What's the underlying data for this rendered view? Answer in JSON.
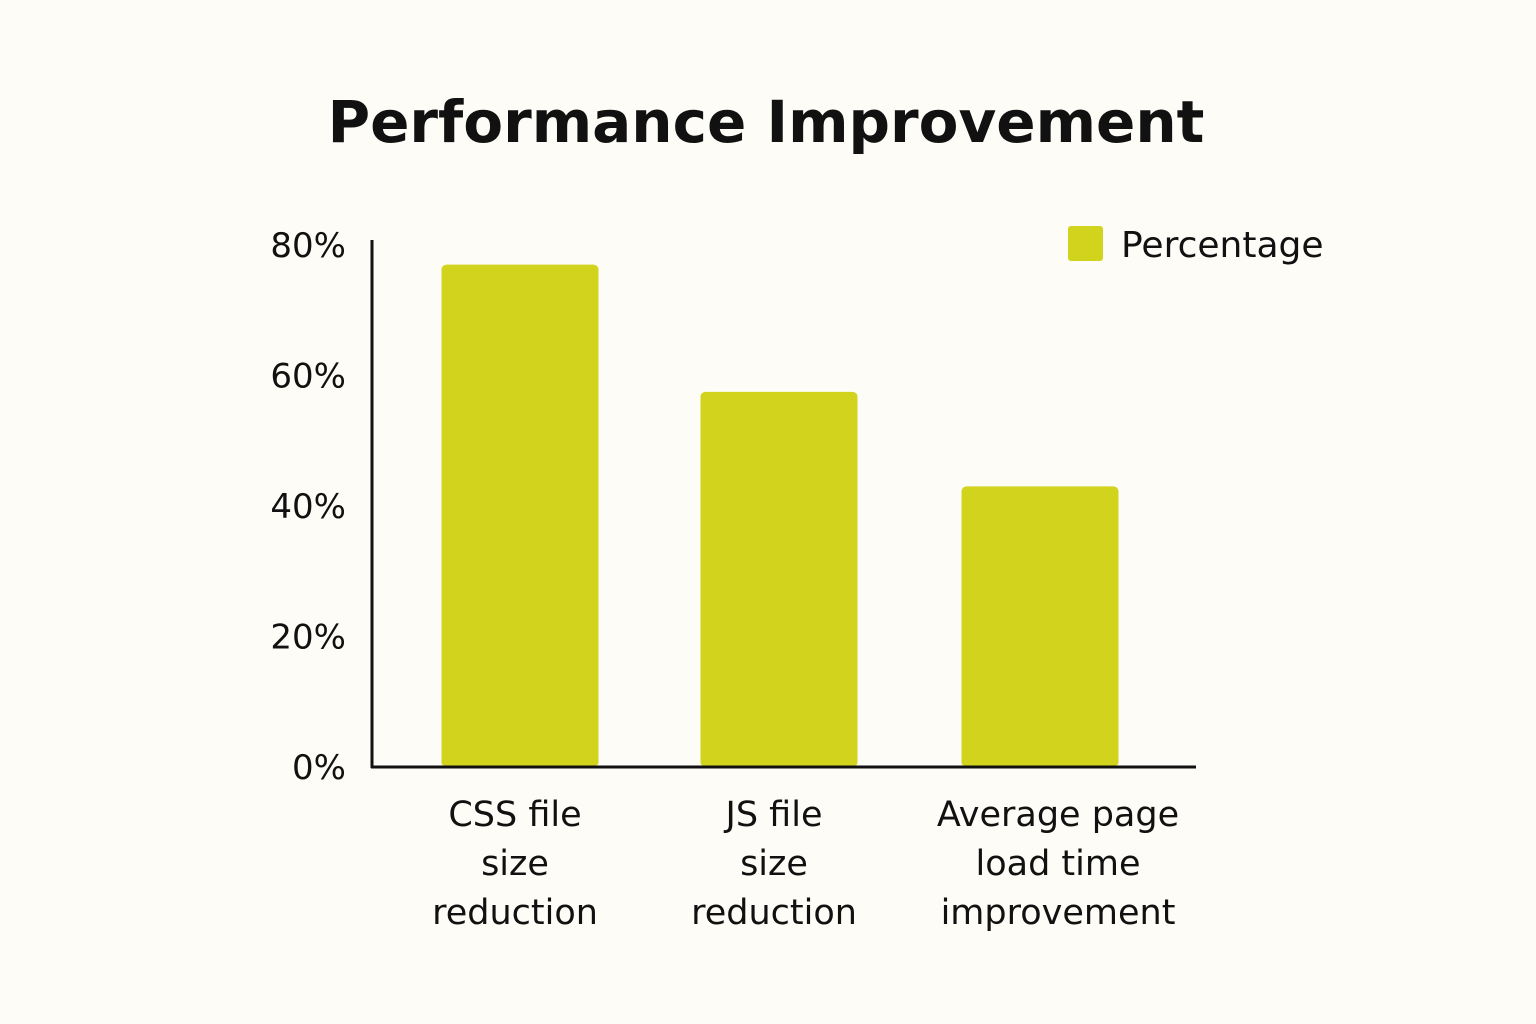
{
  "colors": {
    "background": "#fdfcf6",
    "bar": "#d2d31d",
    "axis": "#111111",
    "text": "#111111"
  },
  "chart_data": {
    "type": "bar",
    "title": "Performance Improvement",
    "xlabel": "",
    "ylabel": "",
    "categories": [
      [
        "CSS file",
        "size",
        "reduction"
      ],
      [
        "JS file",
        "size",
        "reduction"
      ],
      [
        "Average page",
        "load time",
        "improvement"
      ]
    ],
    "series": [
      {
        "name": "Percentage",
        "values": [
          77,
          57.5,
          43
        ]
      }
    ],
    "ylim": [
      0,
      80
    ],
    "yticks": [
      0,
      20,
      40,
      60,
      80
    ],
    "ytick_labels": [
      "0%",
      "20%",
      "40%",
      "60%",
      "80%"
    ],
    "grid": false,
    "legend_position": "top-right"
  }
}
